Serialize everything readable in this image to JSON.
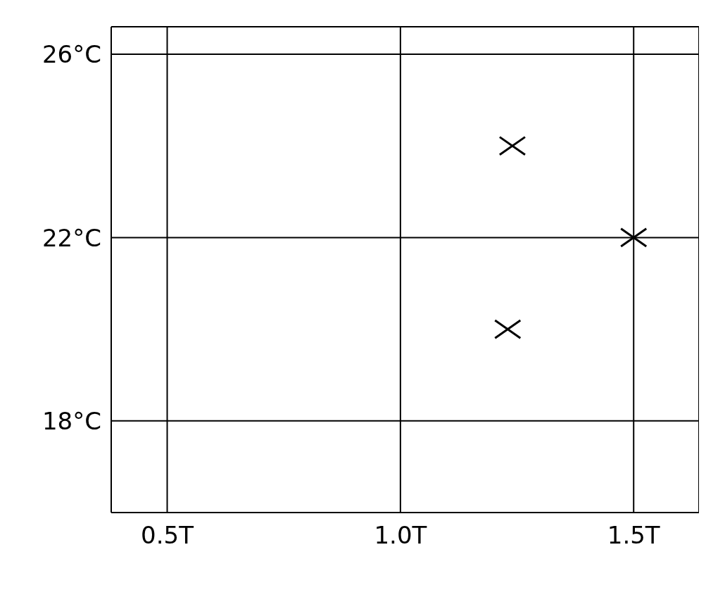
{
  "chart_data": {
    "type": "scatter",
    "series": [
      {
        "color": "#000000",
        "x": [
          1.24,
          1.5,
          1.23
        ],
        "values": [
          24,
          22,
          20
        ]
      }
    ],
    "xlim": [
      0.38,
      1.64
    ],
    "ylim": [
      16,
      26.6
    ],
    "xticks": [
      {
        "value": 0.5,
        "label": "0.5T"
      },
      {
        "value": 1.0,
        "label": "1.0T"
      },
      {
        "value": 1.5,
        "label": "1.5T"
      }
    ],
    "yticks": [
      {
        "value": 18,
        "label": "18°C"
      },
      {
        "value": 22,
        "label": "22°C"
      },
      {
        "value": 26,
        "label": "26°C"
      }
    ],
    "grid": true,
    "marker": "cross",
    "legend": false
  }
}
